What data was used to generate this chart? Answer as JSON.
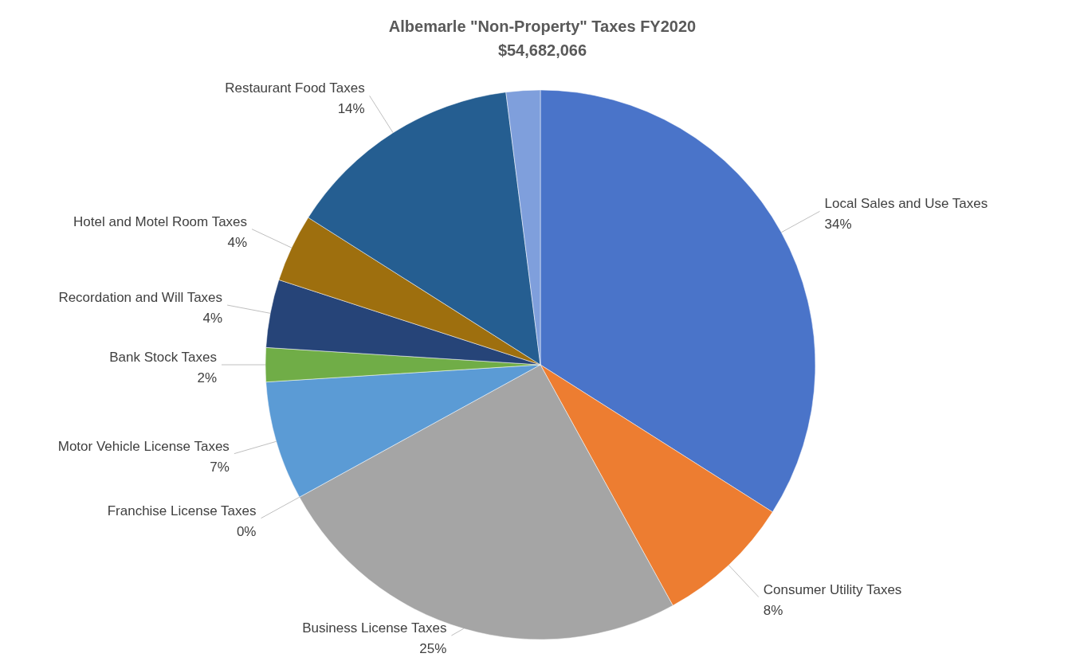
{
  "chart_data": {
    "type": "pie",
    "title": "Albemarle \"Non-Property\" Taxes FY2020",
    "subtitle": "$54,682,066",
    "categories": [
      "Local Sales and Use Taxes",
      "Consumer Utility Taxes",
      "Business License Taxes",
      "Franchise License Taxes",
      "Motor Vehicle License Taxes",
      "Bank Stock Taxes",
      "Recordation and Will Taxes",
      "Hotel and Motel Room Taxes",
      "Restaurant Food Taxes",
      null
    ],
    "values": [
      34,
      8,
      25,
      0,
      7,
      2,
      4,
      4,
      14,
      2
    ],
    "value_labels": [
      "34%",
      "8%",
      "25%",
      "0%",
      "7%",
      "2%",
      "4%",
      "4%",
      "14%",
      null
    ],
    "colors": [
      "#4a74c9",
      "#ed7d31",
      "#a5a5a5",
      "#ffc000",
      "#5b9bd5",
      "#70ad47",
      "#264478",
      "#9e6f0e",
      "#255e91",
      "#7f9fdc"
    ]
  }
}
